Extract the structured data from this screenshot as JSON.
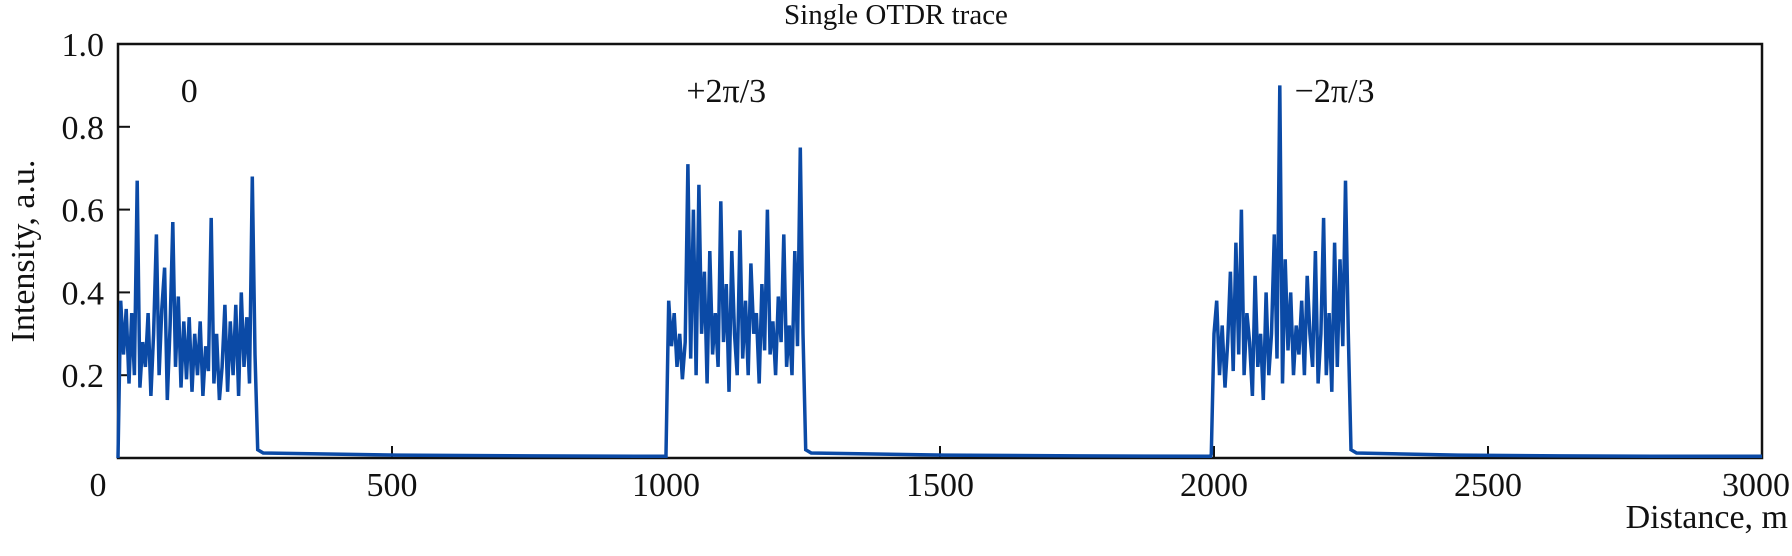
{
  "chart_data": {
    "type": "line",
    "title": "Single OTDR trace",
    "xlabel": "Distance, m",
    "ylabel": "Intensity, a.u.",
    "xlim": [
      0,
      3000
    ],
    "ylim": [
      0,
      1.0
    ],
    "xticks": [
      "0",
      "500",
      "1000",
      "1500",
      "2000",
      "2500",
      "3000"
    ],
    "xtick_values": [
      0,
      500,
      1000,
      1500,
      2000,
      2500,
      3000
    ],
    "yticks": [
      "0.2",
      "0.4",
      "0.6",
      "0.8",
      "1.0"
    ],
    "ytick_values": [
      0.2,
      0.4,
      0.6,
      0.8,
      1.0
    ],
    "grid": false,
    "line_color": "#0b4aa6",
    "annotations": [
      {
        "text": "0",
        "x": 130,
        "y": 0.86
      },
      {
        "text": "+2π/3",
        "x": 1110,
        "y": 0.86
      },
      {
        "text": "−2π/3",
        "x": 2220,
        "y": 0.86
      }
    ],
    "segments": [
      {
        "start": 0,
        "step": 5,
        "values": [
          0.0,
          0.38,
          0.25,
          0.36,
          0.18,
          0.35,
          0.2,
          0.67,
          0.17,
          0.28,
          0.22,
          0.35,
          0.15,
          0.3,
          0.54,
          0.2,
          0.36,
          0.46,
          0.14,
          0.32,
          0.57,
          0.22,
          0.39,
          0.17,
          0.33,
          0.19,
          0.34,
          0.16,
          0.3,
          0.2,
          0.33,
          0.15,
          0.27,
          0.21,
          0.58,
          0.18,
          0.3,
          0.14,
          0.22,
          0.37,
          0.16,
          0.33,
          0.2,
          0.37,
          0.15,
          0.4,
          0.22,
          0.34,
          0.18,
          0.68,
          0.25,
          0.02
        ]
      },
      {
        "start": 265,
        "step": 245,
        "values": [
          0.012,
          0.007,
          0.005,
          0.004
        ]
      },
      {
        "start": 1000,
        "step": 5,
        "values": [
          0.01,
          0.38,
          0.27,
          0.35,
          0.22,
          0.3,
          0.19,
          0.28,
          0.71,
          0.24,
          0.6,
          0.2,
          0.66,
          0.3,
          0.45,
          0.18,
          0.5,
          0.25,
          0.35,
          0.22,
          0.62,
          0.28,
          0.42,
          0.16,
          0.5,
          0.3,
          0.2,
          0.55,
          0.24,
          0.38,
          0.2,
          0.47,
          0.3,
          0.35,
          0.18,
          0.42,
          0.26,
          0.6,
          0.25,
          0.33,
          0.2,
          0.39,
          0.28,
          0.54,
          0.22,
          0.32,
          0.2,
          0.5,
          0.27,
          0.75,
          0.3,
          0.02
        ]
      },
      {
        "start": 1265,
        "step": 243,
        "values": [
          0.012,
          0.007,
          0.005,
          0.004
        ]
      },
      {
        "start": 1995,
        "step": 5,
        "values": [
          0.01,
          0.3,
          0.38,
          0.2,
          0.32,
          0.17,
          0.28,
          0.45,
          0.21,
          0.52,
          0.25,
          0.6,
          0.2,
          0.35,
          0.28,
          0.15,
          0.44,
          0.22,
          0.3,
          0.14,
          0.4,
          0.2,
          0.3,
          0.54,
          0.24,
          0.9,
          0.18,
          0.48,
          0.26,
          0.4,
          0.2,
          0.32,
          0.25,
          0.38,
          0.2,
          0.44,
          0.3,
          0.22,
          0.5,
          0.18,
          0.3,
          0.58,
          0.2,
          0.35,
          0.16,
          0.52,
          0.22,
          0.48,
          0.27,
          0.67,
          0.3,
          0.02
        ]
      },
      {
        "start": 2260,
        "step": 185,
        "values": [
          0.012,
          0.007,
          0.005,
          0.004,
          0.004
        ]
      }
    ]
  }
}
